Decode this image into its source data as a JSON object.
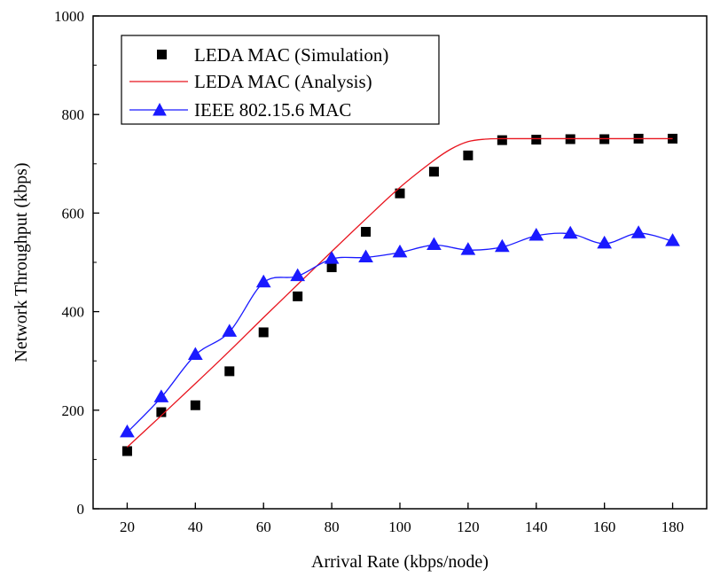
{
  "chart_data": {
    "type": "line",
    "xlabel": "Arrival Rate (kbps/node)",
    "ylabel": "Network Throughput (kbps)",
    "xlim": [
      10,
      190
    ],
    "ylim": [
      0,
      1000
    ],
    "x_ticks": [
      20,
      40,
      60,
      80,
      100,
      120,
      140,
      160,
      180
    ],
    "y_ticks": [
      0,
      200,
      400,
      600,
      800,
      1000
    ],
    "grid": false,
    "legend_position": "top-left",
    "series": [
      {
        "name": "LEDA MAC (Simulation)",
        "style": "markers",
        "marker": "square",
        "color": "#000000",
        "x": [
          20,
          30,
          40,
          50,
          60,
          70,
          80,
          90,
          100,
          110,
          120,
          130,
          140,
          150,
          160,
          170,
          180
        ],
        "y": [
          117,
          196,
          210,
          279,
          358,
          431,
          490,
          562,
          640,
          684,
          717,
          748,
          749,
          750,
          750,
          751,
          751
        ]
      },
      {
        "name": "LEDA MAC (Analysis)",
        "style": "line",
        "color": "#e8141e",
        "x": [
          20,
          30,
          40,
          50,
          60,
          70,
          80,
          90,
          100,
          110,
          115,
          120,
          125,
          130,
          140,
          150,
          160,
          170,
          180
        ],
        "y": [
          125,
          189,
          254,
          320,
          388,
          455,
          522,
          588,
          652,
          707,
          730,
          745,
          750,
          751,
          751,
          751,
          751,
          751,
          751
        ]
      },
      {
        "name": "IEEE 802.15.6 MAC",
        "style": "line+markers",
        "marker": "triangle",
        "color": "#1a1aff",
        "x": [
          20,
          30,
          40,
          50,
          60,
          70,
          80,
          90,
          100,
          110,
          120,
          130,
          140,
          150,
          160,
          170,
          180
        ],
        "y": [
          155,
          226,
          312,
          359,
          459,
          472,
          507,
          510,
          520,
          535,
          525,
          531,
          554,
          558,
          538,
          559,
          543
        ]
      }
    ]
  }
}
